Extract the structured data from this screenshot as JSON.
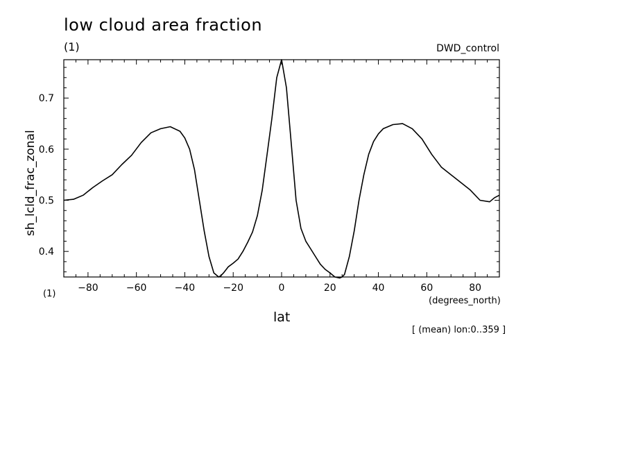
{
  "header": {
    "title": "low cloud area fraction",
    "units": "(1)",
    "dataset": "DWD_control"
  },
  "footer": {
    "units": "(1)",
    "note": "[ (mean) lon:0..359 ]"
  },
  "chart_data": {
    "type": "line",
    "title": "low cloud area fraction",
    "xlabel": "lat",
    "xunits": "(degrees_north)",
    "ylabel": "sh_lcld_frac_zonal",
    "xlim": [
      -90,
      90
    ],
    "ylim": [
      0.35,
      0.775
    ],
    "xticks": [
      -80,
      -60,
      -40,
      -20,
      0,
      20,
      40,
      60,
      80
    ],
    "xtick_labels": [
      "−80",
      "−60",
      "−40",
      "−20",
      "0",
      "20",
      "40",
      "60",
      "80"
    ],
    "yticks": [
      0.4,
      0.5,
      0.6,
      0.7
    ],
    "ytick_labels": [
      "0.4",
      "0.5",
      "0.6",
      "0.7"
    ],
    "grid": false,
    "series": [
      {
        "x": [
          -90,
          -86,
          -82,
          -78,
          -74,
          -70,
          -66,
          -62,
          -58,
          -54,
          -50,
          -46,
          -42,
          -40,
          -38,
          -36,
          -34,
          -32,
          -30,
          -28,
          -26,
          -25,
          -24,
          -22,
          -20,
          -18,
          -16,
          -14,
          -12,
          -10,
          -8,
          -6,
          -4,
          -2,
          0,
          2,
          4,
          6,
          8,
          10,
          12,
          14,
          16,
          18,
          20,
          22,
          24,
          25,
          26,
          28,
          30,
          32,
          34,
          36,
          38,
          40,
          42,
          46,
          50,
          54,
          58,
          62,
          66,
          70,
          74,
          78,
          82,
          86,
          88,
          90
        ],
        "y": [
          0.5,
          0.502,
          0.51,
          0.525,
          0.538,
          0.55,
          0.57,
          0.588,
          0.613,
          0.632,
          0.64,
          0.644,
          0.635,
          0.622,
          0.6,
          0.56,
          0.5,
          0.44,
          0.39,
          0.358,
          0.35,
          0.353,
          0.358,
          0.37,
          0.377,
          0.385,
          0.4,
          0.418,
          0.438,
          0.47,
          0.52,
          0.59,
          0.66,
          0.74,
          0.775,
          0.72,
          0.61,
          0.5,
          0.445,
          0.42,
          0.405,
          0.39,
          0.375,
          0.365,
          0.358,
          0.35,
          0.348,
          0.35,
          0.355,
          0.39,
          0.44,
          0.5,
          0.55,
          0.59,
          0.615,
          0.63,
          0.64,
          0.648,
          0.65,
          0.64,
          0.62,
          0.59,
          0.565,
          0.55,
          0.535,
          0.52,
          0.5,
          0.497,
          0.505,
          0.51
        ]
      }
    ]
  }
}
